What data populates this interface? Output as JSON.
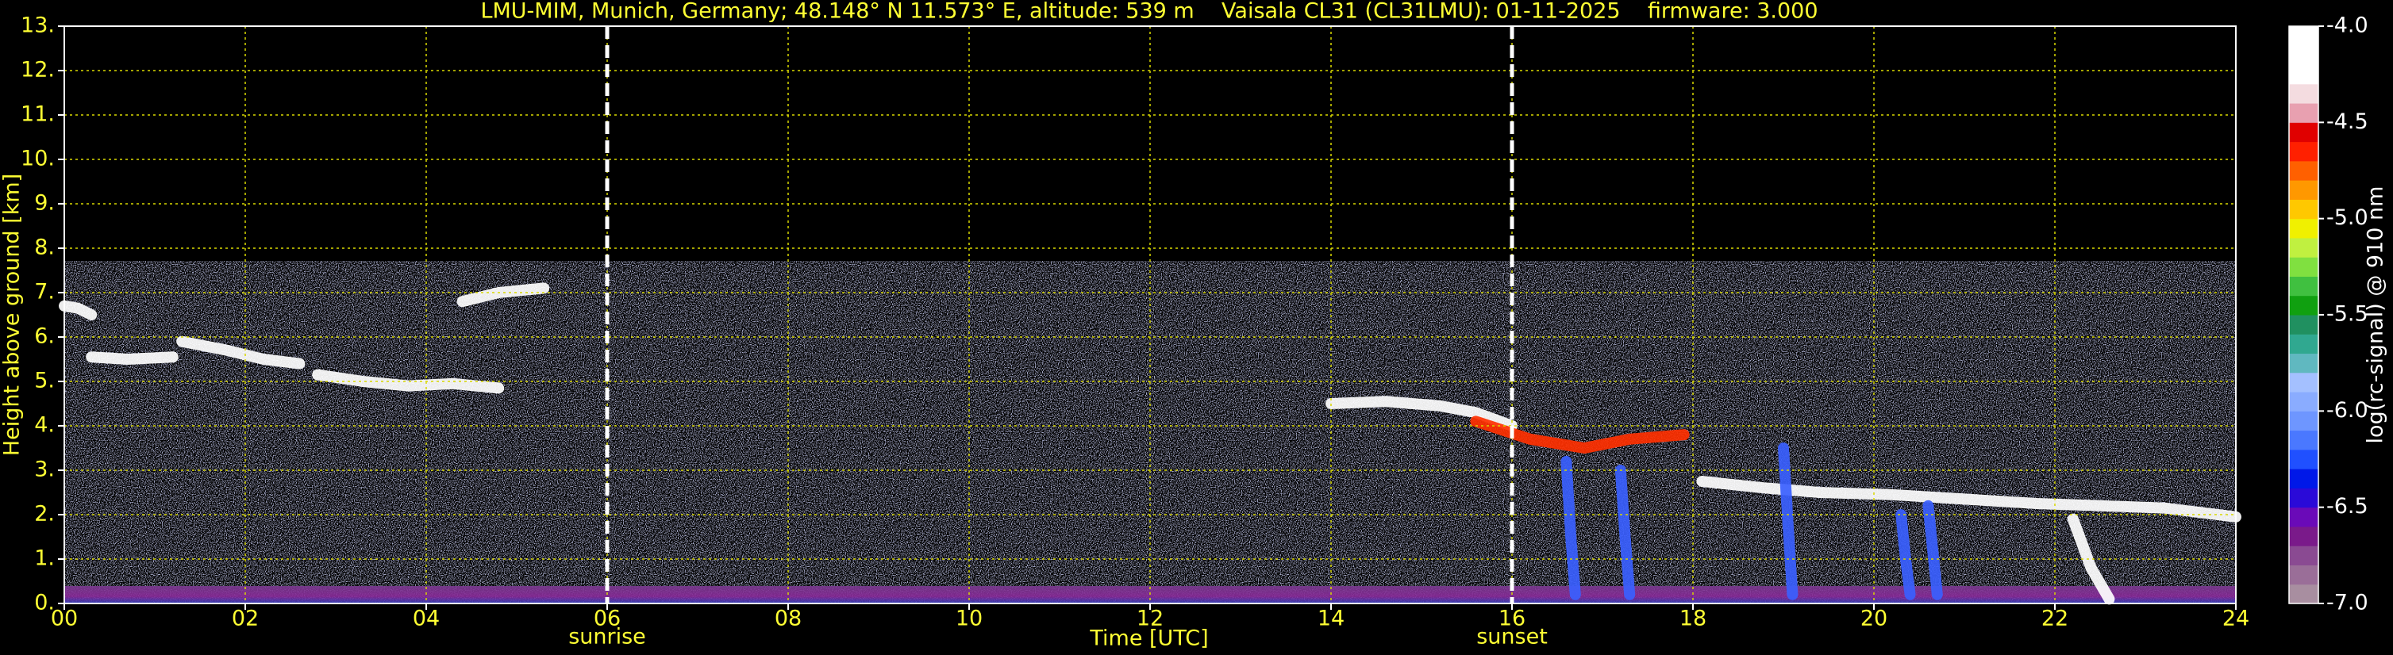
{
  "chart_data": {
    "type": "heatmap",
    "title": "LMU-MIM, Munich, Germany; 48.148° N 11.573° E, altitude: 539 m    Vaisala CL31 (CL31LMU): 01-11-2025    firmware: 3.000",
    "xlabel": "Time [UTC]",
    "ylabel": "Height above ground [km]",
    "xlim": [
      0,
      24
    ],
    "xticks": [
      {
        "value": 0,
        "label": "00"
      },
      {
        "value": 2,
        "label": "02"
      },
      {
        "value": 4,
        "label": "04"
      },
      {
        "value": 6,
        "label": "06"
      },
      {
        "value": 8,
        "label": "08"
      },
      10,
      12,
      14,
      16,
      18,
      20,
      22,
      24
    ],
    "ylim": [
      0,
      13
    ],
    "yticks": [
      {
        "value": 0,
        "label": "0."
      },
      {
        "value": 1,
        "label": "1."
      },
      {
        "value": 2,
        "label": "2."
      },
      {
        "value": 3,
        "label": "3."
      },
      {
        "value": 4,
        "label": "4."
      },
      {
        "value": 5,
        "label": "5."
      },
      {
        "value": 6,
        "label": "6."
      },
      {
        "value": 7,
        "label": "7."
      },
      {
        "value": 8,
        "label": "8."
      },
      {
        "value": 9,
        "label": "9."
      },
      {
        "value": 10,
        "label": "10."
      },
      {
        "value": 11,
        "label": "11."
      },
      {
        "value": 12,
        "label": "12."
      },
      {
        "value": 13,
        "label": "13."
      }
    ],
    "grid": true,
    "grid_color": "#d8d800",
    "text_color": "#ffff33",
    "annotations": [
      {
        "x": 6,
        "label": "sunrise"
      },
      {
        "x": 16,
        "label": "sunset"
      }
    ],
    "colorbar": {
      "label": "log(rc-signal) @ 910 nm",
      "lim": [
        -7,
        -4
      ],
      "ticks": [
        {
          "value": -7,
          "label": "-7.0"
        },
        {
          "value": -6.5,
          "label": "-6.5"
        },
        {
          "value": -6,
          "label": "-6.0"
        },
        {
          "value": -5.5,
          "label": "-5.5"
        },
        {
          "value": -5,
          "label": "-5.0"
        },
        {
          "value": -4.5,
          "label": "-4.5"
        },
        {
          "value": -4,
          "label": "-4.0"
        }
      ],
      "colors": [
        "#a88ea0",
        "#9a6e98",
        "#8a4a92",
        "#7a1a8a",
        "#6a0ab8",
        "#2a0ad8",
        "#0018e8",
        "#2050ff",
        "#4a78ff",
        "#6e96ff",
        "#8aacff",
        "#a4c0ff",
        "#60b8c0",
        "#30a890",
        "#209060",
        "#10a010",
        "#40c040",
        "#80e040",
        "#c0f040",
        "#f0f000",
        "#ffc800",
        "#ff9800",
        "#ff6000",
        "#ff2000",
        "#e00000",
        "#e8a0b0",
        "#f4dce0",
        "#ffffff",
        "#ffffff",
        "#ffffff"
      ]
    },
    "series": [
      {
        "color": "#ffffff",
        "x": [
          0,
          0.15,
          0.3
        ],
        "y": [
          6.7,
          6.65,
          6.5
        ]
      },
      {
        "color": "#ffffff",
        "x": [
          0.3,
          0.7,
          1.2
        ],
        "y": [
          5.55,
          5.5,
          5.55
        ]
      },
      {
        "color": "#ffffff",
        "x": [
          1.3,
          1.8,
          2.2,
          2.6
        ],
        "y": [
          5.9,
          5.7,
          5.5,
          5.4
        ]
      },
      {
        "color": "#ffffff",
        "x": [
          2.8,
          3.3,
          3.8,
          4.3,
          4.8
        ],
        "y": [
          5.15,
          5.0,
          4.9,
          4.95,
          4.85
        ]
      },
      {
        "color": "#ffffff",
        "x": [
          4.4,
          4.8,
          5.3
        ],
        "y": [
          6.8,
          7.0,
          7.1
        ]
      },
      {
        "color": "#ffffff",
        "x": [
          14.0,
          14.6,
          15.2,
          15.6,
          16.0
        ],
        "y": [
          4.5,
          4.55,
          4.45,
          4.3,
          4.0
        ]
      },
      {
        "color": "#ff3000",
        "x": [
          15.6,
          16.2,
          16.8,
          17.3,
          17.9
        ],
        "y": [
          4.1,
          3.7,
          3.5,
          3.7,
          3.8
        ]
      },
      {
        "color": "#ffffff",
        "x": [
          18.1,
          18.8,
          19.4,
          20.2,
          21.0,
          21.8,
          22.5,
          23.2,
          24.0
        ],
        "y": [
          2.75,
          2.6,
          2.5,
          2.45,
          2.35,
          2.25,
          2.2,
          2.15,
          1.95
        ]
      },
      {
        "color": "#ffffff",
        "x": [
          22.2,
          22.4,
          22.6
        ],
        "y": [
          1.9,
          0.8,
          0.1
        ]
      },
      {
        "color": "#3a60ff",
        "x": [
          16.6,
          16.65,
          16.7
        ],
        "y": [
          3.2,
          1.5,
          0.2
        ]
      },
      {
        "color": "#3a60ff",
        "x": [
          17.2,
          17.25,
          17.3
        ],
        "y": [
          3.0,
          1.5,
          0.2
        ]
      },
      {
        "color": "#3a60ff",
        "x": [
          19.0,
          19.05,
          19.1
        ],
        "y": [
          3.5,
          1.8,
          0.2
        ]
      },
      {
        "color": "#3a60ff",
        "x": [
          20.3,
          20.35,
          20.4
        ],
        "y": [
          2.0,
          1.0,
          0.2
        ]
      },
      {
        "color": "#3a60ff",
        "x": [
          20.6,
          20.65,
          20.7
        ],
        "y": [
          2.2,
          1.2,
          0.2
        ]
      }
    ]
  }
}
